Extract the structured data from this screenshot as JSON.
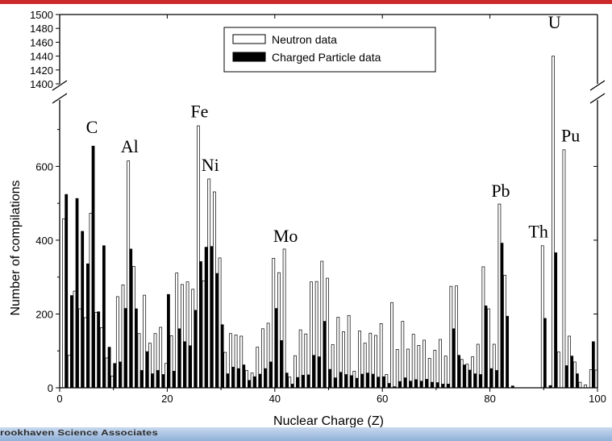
{
  "footer": {
    "text": "rookhaven Science Associates"
  },
  "chart_data": {
    "type": "bar",
    "xlabel": "Nuclear Charge (Z)",
    "ylabel": "Number of compilations",
    "xlim": [
      0,
      100
    ],
    "xticks": [
      0,
      20,
      40,
      60,
      80,
      100
    ],
    "ylim_lower": [
      0,
      780
    ],
    "yticks_lower": [
      0,
      200,
      400,
      600
    ],
    "ylim_upper": [
      1400,
      1500
    ],
    "yticks_upper": [
      1400,
      1420,
      1440,
      1460,
      1480,
      1500
    ],
    "broken_axis": true,
    "legend": {
      "position": "top-center",
      "entries": [
        "Neutron data",
        "Charged Particle data"
      ]
    },
    "series": [
      {
        "name": "Neutron data",
        "color": "#ffffff",
        "z": [
          1,
          2,
          3,
          4,
          5,
          6,
          7,
          8,
          9,
          10,
          11,
          12,
          13,
          14,
          15,
          16,
          17,
          18,
          19,
          20,
          21,
          22,
          23,
          24,
          25,
          26,
          27,
          28,
          29,
          30,
          31,
          32,
          33,
          34,
          35,
          36,
          37,
          38,
          39,
          40,
          41,
          42,
          43,
          44,
          45,
          46,
          47,
          48,
          49,
          50,
          51,
          52,
          53,
          54,
          55,
          56,
          57,
          58,
          59,
          60,
          61,
          62,
          63,
          64,
          65,
          66,
          67,
          68,
          69,
          70,
          71,
          72,
          73,
          74,
          75,
          76,
          77,
          78,
          79,
          80,
          81,
          82,
          83,
          84,
          85,
          86,
          87,
          88,
          89,
          90,
          91,
          92,
          93,
          94,
          95,
          96,
          97,
          98,
          99,
          100
        ],
        "values": [
          458,
          88,
          262,
          214,
          190,
          473,
          204,
          163,
          81,
          32,
          247,
          279,
          615,
          329,
          147,
          251,
          121,
          147,
          164,
          66,
          141,
          311,
          280,
          287,
          267,
          710,
          290,
          566,
          531,
          352,
          96,
          147,
          143,
          140,
          47,
          40,
          110,
          160,
          175,
          351,
          312,
          376,
          29,
          87,
          157,
          146,
          287,
          288,
          343,
          297,
          117,
          191,
          152,
          196,
          45,
          154,
          121,
          148,
          142,
          174,
          36,
          231,
          104,
          180,
          105,
          145,
          115,
          129,
          80,
          102,
          131,
          86,
          275,
          276,
          77,
          64,
          84,
          118,
          328,
          214,
          118,
          498,
          305,
          0,
          0,
          0,
          0,
          0,
          0,
          385,
          0,
          1440,
          97,
          645,
          140,
          70,
          15,
          8,
          49,
          48
        ]
      },
      {
        "name": "Charged Particle data",
        "color": "#000000",
        "z": [
          1,
          2,
          3,
          4,
          5,
          6,
          7,
          8,
          9,
          10,
          11,
          12,
          13,
          14,
          15,
          16,
          17,
          18,
          19,
          20,
          21,
          22,
          23,
          24,
          25,
          26,
          27,
          28,
          29,
          30,
          31,
          32,
          33,
          34,
          35,
          36,
          37,
          38,
          39,
          40,
          41,
          42,
          43,
          44,
          45,
          46,
          47,
          48,
          49,
          50,
          51,
          52,
          53,
          54,
          55,
          56,
          57,
          58,
          59,
          60,
          61,
          62,
          63,
          64,
          65,
          66,
          67,
          68,
          69,
          70,
          71,
          72,
          73,
          74,
          75,
          76,
          77,
          78,
          79,
          80,
          81,
          82,
          83,
          84,
          85,
          86,
          87,
          88,
          89,
          90,
          91,
          92,
          93,
          94,
          95,
          96,
          97,
          98,
          99,
          100
        ],
        "values": [
          524,
          250,
          513,
          424,
          336,
          655,
          206,
          385,
          110,
          66,
          70,
          215,
          376,
          214,
          47,
          98,
          38,
          47,
          36,
          253,
          45,
          160,
          125,
          114,
          210,
          342,
          381,
          383,
          310,
          171,
          38,
          56,
          52,
          62,
          20,
          30,
          37,
          52,
          70,
          215,
          128,
          40,
          10,
          28,
          34,
          35,
          88,
          84,
          180,
          50,
          27,
          42,
          36,
          33,
          26,
          37,
          40,
          37,
          29,
          30,
          12,
          3,
          17,
          27,
          18,
          22,
          18,
          23,
          15,
          14,
          10,
          10,
          160,
          88,
          62,
          48,
          38,
          36,
          222,
          52,
          47,
          392,
          194,
          5,
          0,
          0,
          0,
          0,
          0,
          188,
          6,
          366,
          0,
          60,
          86,
          38,
          0,
          0,
          125,
          0
        ]
      }
    ],
    "annotations": [
      {
        "text": "C",
        "z": 6,
        "y": 690
      },
      {
        "text": "Al",
        "z": 13,
        "y": 638
      },
      {
        "text": "Fe",
        "z": 26,
        "y": 733
      },
      {
        "text": "Ni",
        "z": 28,
        "y": 588
      },
      {
        "text": "Mo",
        "z": 42,
        "y": 395
      },
      {
        "text": "Pb",
        "z": 82,
        "y": 518
      },
      {
        "text": "Th",
        "z": 89,
        "y": 408
      },
      {
        "text": "U",
        "z": 92,
        "y": 1480
      },
      {
        "text": "Pu",
        "z": 95,
        "y": 668
      }
    ]
  }
}
